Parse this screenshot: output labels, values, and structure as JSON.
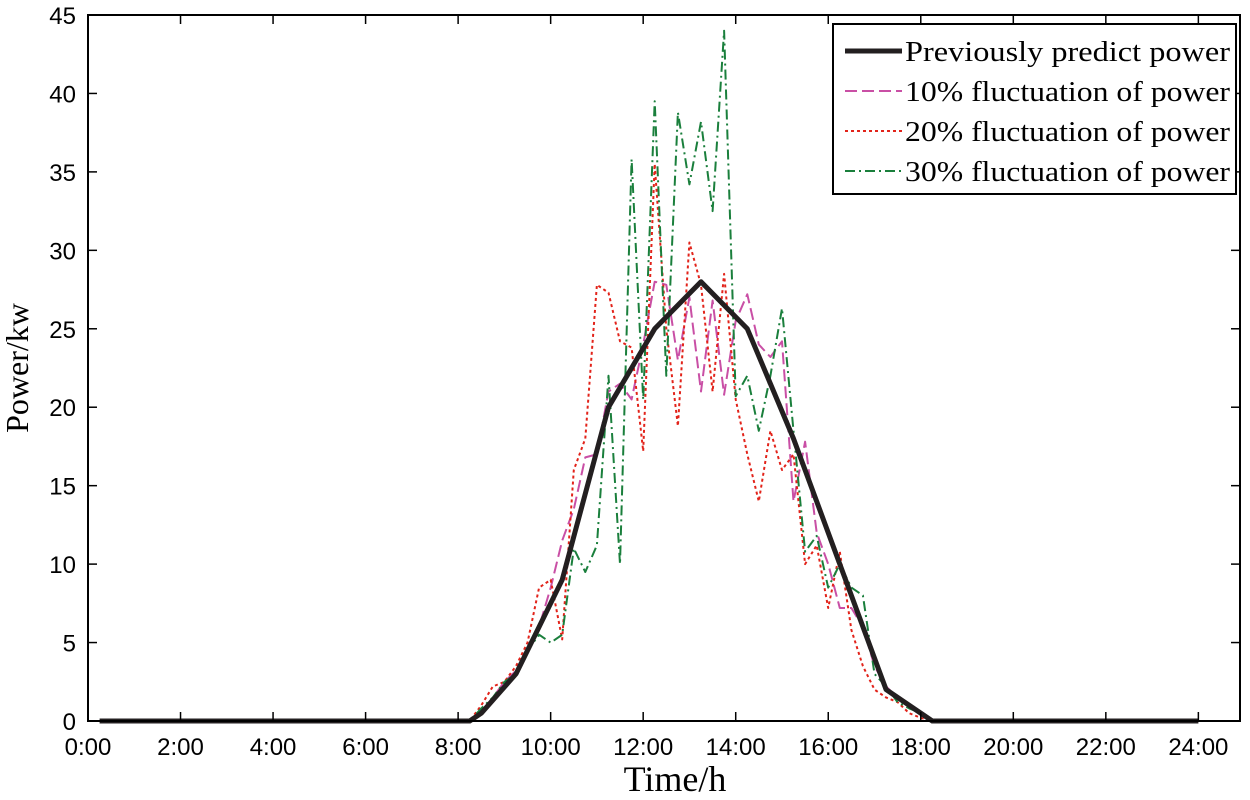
{
  "chart_data": {
    "type": "line",
    "xlabel": "Time/h",
    "ylabel": "Power/kw",
    "xlim": [
      0,
      24.9
    ],
    "ylim": [
      0,
      45
    ],
    "xticks": [
      0,
      2,
      4,
      6,
      8,
      10,
      12,
      14,
      16,
      18,
      20,
      22,
      24
    ],
    "xtick_labels": [
      "0:00",
      "2:00",
      "4:00",
      "6:00",
      "8:00",
      "10:00",
      "12:00",
      "14:00",
      "16:00",
      "18:00",
      "20:00",
      "22:00",
      "24:00"
    ],
    "yticks": [
      0,
      5,
      10,
      15,
      20,
      25,
      30,
      35,
      40,
      45
    ],
    "ytick_labels": [
      "0",
      "5",
      "10",
      "15",
      "20",
      "25",
      "30",
      "35",
      "40",
      "45"
    ],
    "grid": false,
    "legend_position": "top-right",
    "series": [
      {
        "name": "Previously predict power",
        "color": "#231f20",
        "style": "solid",
        "x": [
          0.25,
          8.25,
          8.5,
          9.25,
          10.25,
          11.25,
          12.25,
          13.25,
          14.25,
          15.25,
          16.25,
          17.25,
          18.25,
          19.0,
          24.0
        ],
        "y": [
          0,
          0,
          0.5,
          3,
          9,
          20,
          25,
          28,
          25,
          18,
          10,
          2,
          0,
          0,
          0
        ]
      },
      {
        "name": "10% fluctuation of power",
        "color": "#c94fa5",
        "style": "dashed",
        "x": [
          0.25,
          8.25,
          8.5,
          8.75,
          9.0,
          9.25,
          9.5,
          9.75,
          10.0,
          10.25,
          10.5,
          10.75,
          11.0,
          11.25,
          11.5,
          11.75,
          12.0,
          12.25,
          12.5,
          12.75,
          13.0,
          13.25,
          13.5,
          13.75,
          14.0,
          14.25,
          14.5,
          14.75,
          15.0,
          15.25,
          15.5,
          15.75,
          16.0,
          16.25,
          16.5,
          16.75,
          17.0,
          17.25,
          17.5,
          17.75,
          18.0,
          18.25,
          24.0
        ],
        "y": [
          0,
          0,
          0.6,
          1.5,
          2.5,
          3.2,
          4.5,
          6.0,
          8.5,
          11.5,
          13.5,
          16.8,
          17.0,
          21.0,
          21.5,
          20.5,
          24.0,
          28.0,
          27.8,
          23.0,
          27.0,
          21.0,
          26.8,
          20.8,
          25.5,
          27.2,
          24.0,
          23.2,
          24.2,
          14.0,
          17.8,
          12.0,
          10.0,
          7.2,
          7.2,
          6.0,
          3.5,
          2.2,
          1.5,
          1.0,
          0.5,
          0,
          0
        ]
      },
      {
        "name": "20% fluctuation of power",
        "color": "#e2231a",
        "style": "dotted",
        "x": [
          0.25,
          8.25,
          8.5,
          8.75,
          9.0,
          9.25,
          9.5,
          9.75,
          10.0,
          10.25,
          10.5,
          10.75,
          11.0,
          11.25,
          11.5,
          11.75,
          12.0,
          12.25,
          12.5,
          12.75,
          13.0,
          13.25,
          13.5,
          13.75,
          14.0,
          14.25,
          14.5,
          14.75,
          15.0,
          15.25,
          15.5,
          15.75,
          16.0,
          16.25,
          16.5,
          16.75,
          17.0,
          17.25,
          17.5,
          17.75,
          18.0,
          18.25,
          24.0
        ],
        "y": [
          0,
          0,
          1.0,
          2.2,
          2.5,
          3.5,
          5.0,
          8.5,
          9.0,
          5.2,
          16.0,
          18.0,
          27.8,
          27.3,
          24.2,
          23.8,
          17.2,
          35.5,
          25.0,
          18.8,
          30.5,
          27.8,
          21.0,
          28.5,
          20.5,
          17.0,
          14.0,
          18.5,
          16.0,
          17.0,
          10.0,
          11.2,
          7.2,
          10.8,
          5.8,
          3.5,
          2.0,
          1.5,
          1.2,
          0.5,
          0.2,
          0,
          0
        ]
      },
      {
        "name": "30% fluctuation of power",
        "color": "#1a7f3c",
        "style": "dashdot",
        "x": [
          0.25,
          8.25,
          8.5,
          8.75,
          9.0,
          9.25,
          9.5,
          9.75,
          10.0,
          10.25,
          10.5,
          10.75,
          11.0,
          11.25,
          11.5,
          11.75,
          12.0,
          12.25,
          12.5,
          12.75,
          13.0,
          13.25,
          13.5,
          13.75,
          14.0,
          14.25,
          14.5,
          14.75,
          15.0,
          15.25,
          15.5,
          15.75,
          16.0,
          16.25,
          16.5,
          16.75,
          17.0,
          17.25,
          17.5,
          17.75,
          18.0,
          18.25,
          24.0
        ],
        "y": [
          0,
          0,
          0.8,
          1.5,
          2.5,
          3.0,
          4.5,
          5.5,
          5.0,
          5.5,
          11.0,
          9.5,
          11.2,
          22.0,
          10.0,
          35.8,
          20.5,
          39.5,
          22.0,
          38.8,
          34.2,
          38.2,
          32.5,
          44.0,
          20.7,
          22.0,
          18.5,
          22.0,
          26.3,
          18.5,
          10.8,
          11.8,
          8.5,
          10.0,
          8.5,
          8.0,
          3.0,
          2.2,
          1.2,
          0.8,
          0.5,
          0,
          0
        ]
      }
    ]
  }
}
